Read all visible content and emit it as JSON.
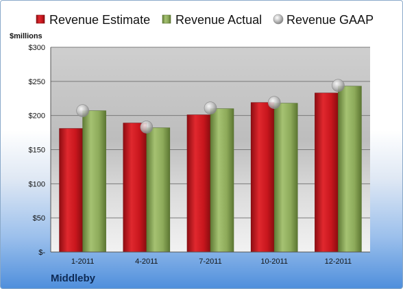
{
  "company": "Middleby",
  "chart_data": {
    "type": "bar",
    "unit_label": "$millions",
    "categories": [
      "1-2011",
      "4-2011",
      "7-2011",
      "10-2011",
      "12-2011"
    ],
    "series": [
      {
        "name": "Revenue Estimate",
        "kind": "bar",
        "color": "#c8161d",
        "values": [
          181,
          189,
          201,
          219,
          233
        ]
      },
      {
        "name": "Revenue Actual",
        "kind": "bar",
        "color": "#8daa5a",
        "values": [
          207,
          182,
          210,
          218,
          243
        ]
      },
      {
        "name": "Revenue GAAP",
        "kind": "marker",
        "color": "#b0b0b0",
        "values": [
          207,
          183,
          211,
          219,
          244
        ]
      }
    ],
    "ylim": [
      0,
      300
    ],
    "yticks": [
      0,
      50,
      100,
      150,
      200,
      250,
      300
    ],
    "ytick_labels": [
      "$-",
      "$50",
      "$100",
      "$150",
      "$200",
      "$250",
      "$300"
    ],
    "grid": true,
    "legend_position": "top"
  }
}
